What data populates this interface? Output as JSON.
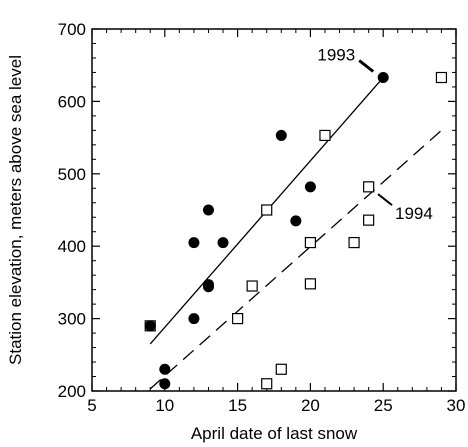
{
  "chart_data": {
    "type": "scatter",
    "title": "",
    "xlabel": "April date of last snow",
    "ylabel": "Station elevation, meters above sea level",
    "xlim": [
      5,
      30
    ],
    "ylim": [
      200,
      700
    ],
    "xticks": [
      "5",
      "10",
      "15",
      "20",
      "25",
      "30"
    ],
    "yticks": [
      "200",
      "300",
      "400",
      "500",
      "600",
      "700"
    ],
    "grid": false,
    "legend": "none",
    "series": [
      {
        "name": "1993",
        "marker": "filled-circle",
        "color": "#000000",
        "points": [
          [
            9,
            290
          ],
          [
            10,
            230
          ],
          [
            10,
            210
          ],
          [
            12,
            405
          ],
          [
            12,
            300
          ],
          [
            13,
            450
          ],
          [
            13,
            347
          ],
          [
            13,
            344
          ],
          [
            14,
            405
          ],
          [
            18,
            553
          ],
          [
            19,
            435
          ],
          [
            20,
            482
          ],
          [
            25,
            633
          ]
        ],
        "fit_line": {
          "style": "solid",
          "x": [
            9,
            25
          ],
          "y": [
            265,
            633
          ]
        }
      },
      {
        "name": "1994",
        "marker": "open-square",
        "color": "#000000",
        "points": [
          [
            9,
            290
          ],
          [
            15,
            300
          ],
          [
            16,
            345
          ],
          [
            17,
            450
          ],
          [
            17,
            210
          ],
          [
            18,
            230
          ],
          [
            20,
            405
          ],
          [
            20,
            348
          ],
          [
            21,
            553
          ],
          [
            23,
            405
          ],
          [
            24,
            482
          ],
          [
            24,
            436
          ],
          [
            29,
            633
          ]
        ],
        "fit_line": {
          "style": "dashed",
          "x": [
            9,
            29
          ],
          "y": [
            203,
            560
          ]
        }
      }
    ],
    "annotations": [
      {
        "text": "1993",
        "series": 0
      },
      {
        "text": "1994",
        "series": 1
      }
    ]
  }
}
